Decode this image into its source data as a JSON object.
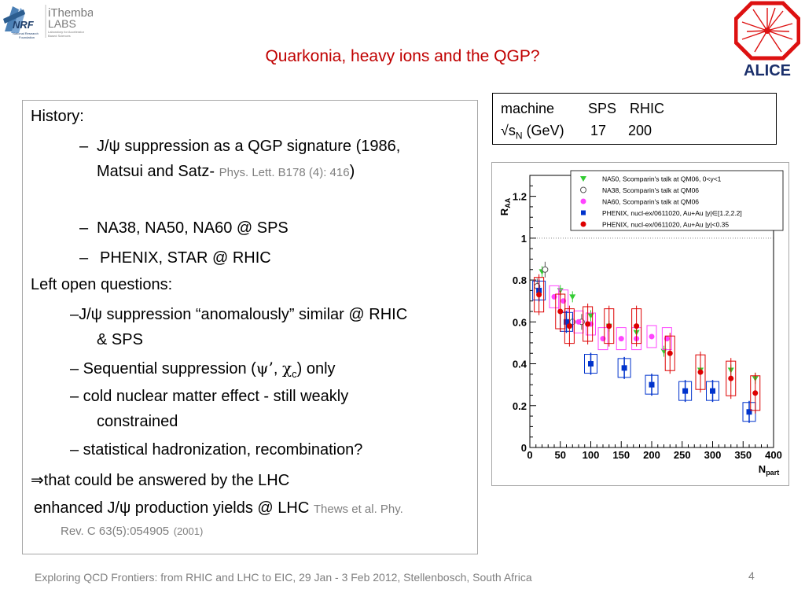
{
  "logos": {
    "nrf": {
      "name": "NRF",
      "line1": "iThemba",
      "line2": "LABS",
      "sub1": "National Research",
      "sub2": "Foundation",
      "tag1": "Laboratory for Accelerator",
      "tag2": "Based Sciences"
    },
    "alice": {
      "name": "ALICE"
    }
  },
  "slide": {
    "title": "Quarkonia, heavy ions and the QGP?",
    "footer": "Exploring QCD Frontiers: from RHIC and LHC to EIC, 29 Jan - 3 Feb 2012, Stellenbosch, South Africa",
    "page_number": "4"
  },
  "body": {
    "history": "History:",
    "b1_dash": "–",
    "b1_text1": "J/ψ suppression as a QGP signature  (1986,",
    "b1_text2": "Matsui and Satz-",
    "b1_ref": "Phys. Lett. B178 (4): 416",
    "b1_close": ")",
    "b2_dash": "–",
    "b2_text": "NA38, NA50, NA60 @ SPS",
    "b3_dash": "–",
    "b3_text": "PHENIX, STAR @ RHIC",
    "open_q": "Left open questions:",
    "q1_line1": "–J/ψ suppression “anomalously” similar @ RHIC",
    "q1_line2": "& SPS",
    "q2_pre": "– Sequential suppression (",
    "q2_psi": "ψ’",
    "q2_mid": ", ",
    "q2_chi": "χ",
    "q2_sub": "c",
    "q2_post": ") only",
    "q3_line1": "– cold nuclear matter effect - still weakly",
    "q3_line2": "constrained",
    "q4": "– statistical hadronization, recombination?",
    "lhc_arrow": "⇒",
    "lhc_text": "that could be answered by the  LHC",
    "enh_text": "enhanced J/ψ production yields @ LHC",
    "enh_ref1": "Thews et al. Phy.",
    "enh_ref2": "Rev. C 63(5):054905",
    "enh_year": "(2001)"
  },
  "table": {
    "h_machine": "machine",
    "h_sps": "SPS",
    "h_rhic": "RHIC",
    "r_label_pre": "√s",
    "r_label_sub": "N",
    "r_label_post": " (GeV)",
    "r_sps": "17",
    "r_rhic": "200"
  },
  "chart_data": {
    "type": "scatter",
    "xlabel": "N",
    "xlabel_sub": "part",
    "ylabel": "R",
    "ylabel_sub": "AA",
    "xlim": [
      0,
      400
    ],
    "ylim": [
      0,
      1.3
    ],
    "xticks": [
      0,
      50,
      100,
      150,
      200,
      250,
      300,
      350,
      400
    ],
    "yticks": [
      0,
      0.2,
      0.4,
      0.6,
      0.8,
      1,
      1.2
    ],
    "ytick_labels": [
      "0",
      "0.2",
      "0.4",
      "0.6",
      "0.8",
      "1",
      "1.2"
    ],
    "reference_line": 1,
    "legend_position": "top-right",
    "series": [
      {
        "name": "NA50, Scomparin's talk at QM06, 0<y<1",
        "marker": "triangle-down",
        "color": "#33cc33",
        "x": [
          20,
          50,
          70,
          100,
          130,
          175,
          220,
          280,
          330,
          370
        ],
        "y": [
          0.84,
          0.75,
          0.72,
          0.63,
          0.58,
          0.55,
          0.46,
          0.37,
          0.37,
          0.33
        ]
      },
      {
        "name": "NA38, Scomparin's talk at QM06",
        "marker": "open-circle",
        "color": "#555555",
        "x": [
          12,
          25,
          70,
          85
        ],
        "y": [
          0.77,
          0.85,
          0.6,
          0.6
        ]
      },
      {
        "name": "NA60, Scomparin's talk at QM06",
        "marker": "circle",
        "color": "#ff44ff",
        "x": [
          40,
          55,
          80,
          100,
          120,
          150,
          175,
          200,
          225
        ],
        "y": [
          0.72,
          0.7,
          0.6,
          0.59,
          0.52,
          0.52,
          0.52,
          0.53,
          0.52
        ]
      },
      {
        "name": "PHENIX, nucl-ex/0611020, Au+Au |y|∈[1.2,2.2]",
        "marker": "square",
        "color": "#0033cc",
        "x": [
          15,
          60,
          100,
          155,
          200,
          255,
          300,
          360
        ],
        "y": [
          0.75,
          0.6,
          0.4,
          0.38,
          0.3,
          0.27,
          0.27,
          0.17
        ]
      },
      {
        "name": "PHENIX, nucl-ex/0611020, Au+Au |y|<0.35",
        "marker": "circle",
        "color": "#dd0000",
        "x": [
          15,
          50,
          65,
          95,
          130,
          175,
          230,
          280,
          330,
          370
        ],
        "y": [
          0.73,
          0.65,
          0.58,
          0.59,
          0.58,
          0.58,
          0.45,
          0.36,
          0.33,
          0.26
        ]
      }
    ]
  }
}
